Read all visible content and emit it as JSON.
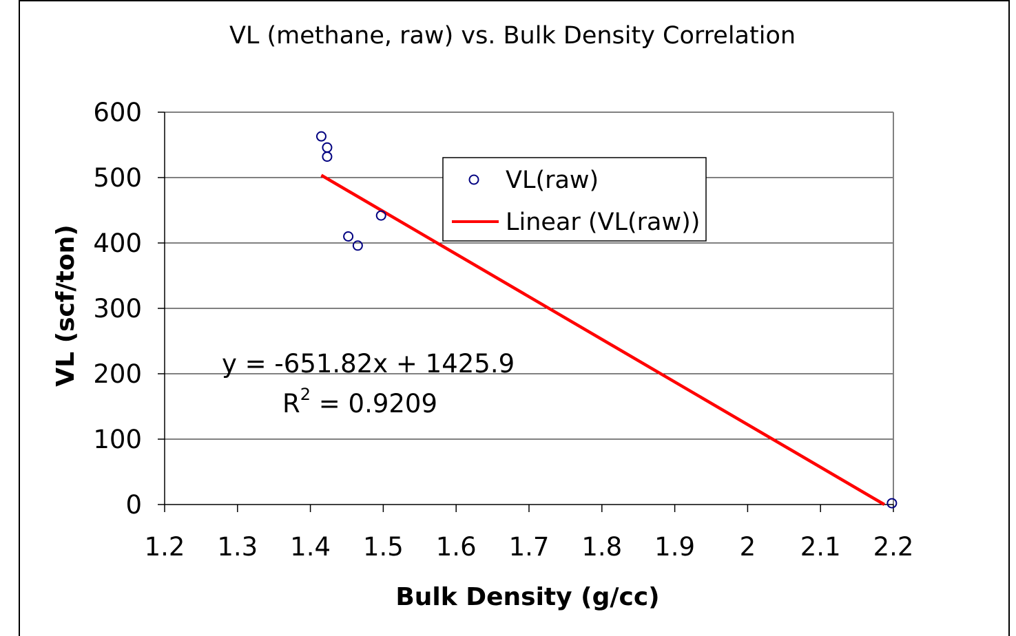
{
  "chart_data": {
    "type": "scatter",
    "title": "VL (methane, raw) vs. Bulk Density Correlation",
    "xlabel": "Bulk Density (g/cc)",
    "ylabel": "VL (scf/ton)",
    "xlim": [
      1.2,
      2.2
    ],
    "ylim": [
      0,
      600
    ],
    "x_ticks": [
      "1.2",
      "1.3",
      "1.4",
      "1.5",
      "1.6",
      "1.7",
      "1.8",
      "1.9",
      "2",
      "2.1",
      "2.2"
    ],
    "y_ticks": [
      "0",
      "100",
      "200",
      "300",
      "400",
      "500",
      "600"
    ],
    "grid": "horizontal",
    "legend_position": "top-center",
    "series": [
      {
        "name": "VL(raw)",
        "marker": "open-circle",
        "color": "#000080",
        "x": [
          1.415,
          1.423,
          1.423,
          1.452,
          1.465,
          1.497,
          2.198
        ],
        "y": [
          563,
          546,
          532,
          410,
          396,
          442,
          2
        ]
      },
      {
        "name": "Linear (VL(raw))",
        "kind": "trendline",
        "color": "#ff0000",
        "x": [
          1.415,
          2.1876
        ],
        "y": [
          503.6,
          0
        ]
      }
    ],
    "annotations": {
      "equation": "y = -651.82x + 1425.9",
      "r2_prefix": "R",
      "r2_sup": "2",
      "r2_value": " = 0.9209"
    }
  }
}
